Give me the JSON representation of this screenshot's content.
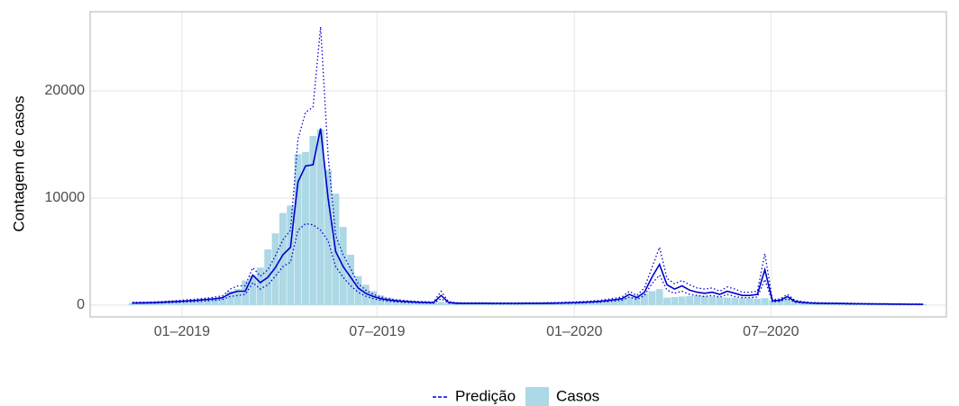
{
  "chart_data": {
    "type": "bar-line",
    "y_label": "Contagem de casos",
    "x": [
      0,
      1,
      2,
      3,
      4,
      5,
      6,
      7,
      8,
      9,
      10,
      11,
      12,
      13,
      14,
      15,
      16,
      17,
      18,
      19,
      20,
      21,
      22,
      23,
      24,
      25,
      26,
      27,
      28,
      29,
      30,
      31,
      32,
      33,
      34,
      35,
      36,
      37,
      38,
      39,
      40,
      41,
      42,
      43,
      44,
      45,
      46,
      47,
      48,
      49,
      50,
      51,
      52,
      53,
      54,
      55,
      56,
      57,
      58,
      59,
      60,
      61,
      62,
      63,
      64,
      65,
      66,
      67,
      68,
      69,
      70,
      71,
      72,
      73,
      74,
      75,
      76,
      77,
      78,
      79,
      80,
      81,
      82,
      83,
      84,
      85,
      86,
      87,
      88,
      89,
      90,
      91,
      92,
      93,
      94,
      95,
      96,
      97,
      98,
      99,
      100,
      101,
      102,
      103,
      104,
      105
    ],
    "xlim": [
      -5.6,
      108.1
    ],
    "xticks": [
      {
        "value": 6.6,
        "label": "01–2019"
      },
      {
        "value": 32.5,
        "label": "07–2019"
      },
      {
        "value": 58.7,
        "label": "01–2020"
      },
      {
        "value": 84.8,
        "label": "07–2020"
      }
    ],
    "ylim": [
      -1100,
      27400
    ],
    "yticks": [
      0,
      10000,
      20000
    ],
    "grid": true,
    "series": [
      {
        "name": "Casos",
        "type": "bar",
        "color": "#add8e6",
        "values": [
          200,
          220,
          230,
          250,
          280,
          320,
          350,
          400,
          450,
          500,
          560,
          620,
          700,
          1300,
          1500,
          2300,
          2800,
          3500,
          5200,
          6700,
          8600,
          9300,
          14100,
          14300,
          15800,
          16400,
          12600,
          10400,
          7300,
          4700,
          2700,
          1900,
          1300,
          900,
          700,
          550,
          450,
          380,
          320,
          280,
          250,
          300,
          220,
          200,
          190,
          180,
          180,
          170,
          170,
          170,
          170,
          170,
          180,
          180,
          180,
          190,
          200,
          210,
          230,
          250,
          280,
          320,
          380,
          450,
          550,
          650,
          750,
          900,
          1100,
          1300,
          1500,
          700,
          750,
          800,
          850,
          900,
          850,
          800,
          750,
          700,
          700,
          650,
          650,
          600,
          650,
          450,
          500,
          650,
          400,
          300,
          250,
          220,
          200,
          180,
          160,
          150,
          140,
          130,
          120,
          110,
          110,
          100,
          100,
          90,
          90,
          80
        ]
      },
      {
        "name": "Predição",
        "type": "line",
        "color": "#0000cd",
        "values": [
          200,
          210,
          220,
          240,
          270,
          300,
          340,
          380,
          420,
          470,
          530,
          600,
          700,
          1100,
          1300,
          1300,
          2800,
          2100,
          2600,
          3500,
          4700,
          5400,
          11500,
          13000,
          13100,
          16500,
          10000,
          5000,
          3600,
          2600,
          1600,
          1100,
          800,
          600,
          480,
          400,
          350,
          300,
          270,
          250,
          230,
          900,
          250,
          180,
          170,
          170,
          170,
          170,
          160,
          160,
          160,
          160,
          170,
          170,
          170,
          180,
          190,
          200,
          220,
          240,
          270,
          300,
          350,
          420,
          500,
          600,
          1000,
          700,
          1200,
          2600,
          3800,
          1900,
          1500,
          1800,
          1400,
          1200,
          1100,
          1200,
          1000,
          1300,
          1100,
          900,
          900,
          1000,
          3300,
          400,
          450,
          800,
          350,
          250,
          200,
          180,
          170,
          160,
          150,
          140,
          130,
          120,
          110,
          100,
          100,
          90,
          90,
          80,
          80,
          70
        ],
        "upper": [
          260,
          270,
          280,
          300,
          340,
          380,
          430,
          480,
          530,
          590,
          660,
          750,
          870,
          1500,
          1800,
          1800,
          3500,
          2700,
          3300,
          4600,
          6100,
          7000,
          15500,
          18000,
          18500,
          26000,
          14000,
          6500,
          4700,
          3400,
          2000,
          1400,
          1000,
          760,
          600,
          500,
          440,
          380,
          340,
          310,
          290,
          1300,
          320,
          230,
          210,
          210,
          210,
          210,
          200,
          200,
          200,
          200,
          210,
          210,
          210,
          230,
          240,
          250,
          280,
          300,
          340,
          380,
          440,
          530,
          630,
          750,
          1300,
          900,
          1600,
          3500,
          5400,
          2500,
          2000,
          2300,
          1900,
          1600,
          1500,
          1600,
          1300,
          1700,
          1500,
          1200,
          1200,
          1300,
          4800,
          500,
          570,
          1000,
          440,
          320,
          250,
          230,
          210,
          200,
          190,
          180,
          160,
          150,
          140,
          130,
          130,
          110,
          110,
          100,
          100,
          90
        ],
        "lower": [
          150,
          160,
          170,
          180,
          200,
          230,
          260,
          290,
          320,
          350,
          400,
          450,
          530,
          800,
          900,
          1000,
          2100,
          1500,
          1900,
          2700,
          3600,
          4000,
          7000,
          7600,
          7500,
          7000,
          6000,
          3600,
          2600,
          1800,
          1200,
          830,
          600,
          450,
          360,
          300,
          260,
          230,
          200,
          190,
          170,
          600,
          190,
          140,
          130,
          130,
          130,
          130,
          120,
          120,
          120,
          120,
          130,
          130,
          130,
          140,
          140,
          150,
          170,
          180,
          200,
          230,
          260,
          320,
          380,
          450,
          750,
          530,
          900,
          2000,
          2800,
          1400,
          1100,
          1300,
          1000,
          900,
          800,
          900,
          750,
          1000,
          800,
          700,
          700,
          750,
          2400,
          300,
          340,
          600,
          260,
          190,
          150,
          140,
          130,
          120,
          110,
          100,
          100,
          90,
          80,
          80,
          80,
          70,
          70,
          60,
          60,
          50
        ]
      }
    ]
  }
}
